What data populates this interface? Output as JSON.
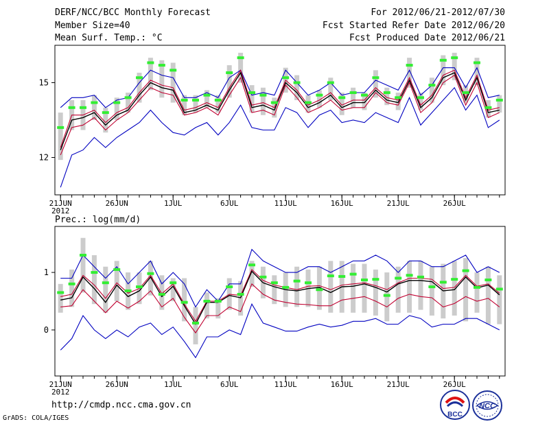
{
  "header": {
    "title": "DERF/NCC/BCC Monthly Forecast",
    "member": "Member Size=40",
    "variable": "Mean Surf. Temp.: °C",
    "period": "For 2012/06/21-2012/07/30",
    "refer": "Fcst Started Refer Date 2012/06/20",
    "produced": "Fcst Produced Date 2012/06/21"
  },
  "footer": {
    "url": "http://cmdp.ncc.cma.gov.cn",
    "credit": "GrADS: COLA/IGES",
    "logo1_text": "BCC",
    "logo2_text": "NCC"
  },
  "colors": {
    "range_line": "#0000c0",
    "spread_line": "#c00030",
    "mean_line": "#000000",
    "bar": "#cccccc",
    "marker": "#33ee33"
  },
  "chart_data": [
    {
      "type": "line",
      "title": "Mean Surf. Temp.: °C",
      "x_tick_labels": [
        "21JUN",
        "26JUN",
        "1JUL",
        "6JUL",
        "11JUL",
        "16JUL",
        "21JUL",
        "26JUL"
      ],
      "x_tick_days": [
        1,
        6,
        11,
        16,
        21,
        26,
        31,
        36
      ],
      "x_year_label": "2012",
      "y_ticks": [
        12,
        15
      ],
      "ylim": [
        10.5,
        16.5
      ],
      "days": 40,
      "series": [
        {
          "name": "max",
          "values": [
            14.0,
            14.4,
            14.4,
            14.5,
            14.0,
            14.3,
            14.4,
            15.0,
            15.5,
            15.3,
            15.2,
            14.4,
            14.4,
            14.6,
            14.4,
            15.2,
            15.5,
            14.5,
            14.6,
            14.5,
            15.5,
            15.0,
            14.5,
            14.7,
            15.0,
            14.5,
            14.6,
            14.6,
            15.1,
            14.9,
            14.7,
            15.5,
            14.5,
            14.9,
            15.6,
            15.6,
            14.8,
            15.6,
            14.4,
            14.5
          ]
        },
        {
          "name": "spread_upper",
          "values": [
            12.4,
            13.7,
            13.7,
            13.9,
            13.4,
            13.8,
            14.0,
            14.6,
            15.1,
            14.9,
            14.8,
            13.9,
            14.0,
            14.2,
            14.0,
            14.8,
            15.5,
            14.1,
            14.2,
            14.0,
            15.1,
            14.7,
            14.1,
            14.3,
            14.6,
            14.1,
            14.3,
            14.3,
            14.8,
            14.4,
            14.3,
            15.2,
            14.1,
            14.5,
            15.3,
            15.5,
            14.4,
            15.3,
            13.9,
            14.0
          ]
        },
        {
          "name": "mean",
          "values": [
            12.3,
            13.5,
            13.6,
            13.8,
            13.3,
            13.7,
            13.9,
            14.5,
            15.0,
            14.8,
            14.7,
            13.8,
            13.9,
            14.1,
            13.9,
            14.7,
            15.4,
            14.0,
            14.1,
            13.9,
            15.0,
            14.6,
            14.0,
            14.2,
            14.5,
            14.0,
            14.2,
            14.2,
            14.7,
            14.3,
            14.2,
            15.1,
            14.0,
            14.4,
            15.2,
            15.4,
            14.3,
            15.2,
            13.8,
            13.9
          ]
        },
        {
          "name": "spread_lower",
          "values": [
            12.1,
            13.2,
            13.3,
            13.6,
            13.1,
            13.5,
            13.8,
            14.3,
            14.8,
            14.6,
            14.5,
            13.7,
            13.8,
            14.0,
            13.7,
            14.5,
            15.2,
            13.8,
            13.9,
            13.7,
            14.9,
            14.4,
            13.8,
            14.0,
            14.3,
            13.9,
            14.0,
            14.0,
            14.6,
            14.2,
            14.1,
            15.0,
            13.8,
            14.2,
            15.0,
            15.3,
            14.1,
            15.0,
            13.6,
            13.8
          ]
        },
        {
          "name": "min",
          "values": [
            10.8,
            12.1,
            12.3,
            12.8,
            12.4,
            12.8,
            13.1,
            13.4,
            13.9,
            13.4,
            13.0,
            12.9,
            13.2,
            13.4,
            12.9,
            13.4,
            14.1,
            13.2,
            13.1,
            13.1,
            14.0,
            13.8,
            13.2,
            13.7,
            13.9,
            13.4,
            13.5,
            13.4,
            13.8,
            13.6,
            13.4,
            14.4,
            13.3,
            13.8,
            14.3,
            14.8,
            13.9,
            14.5,
            13.2,
            13.5
          ]
        },
        {
          "name": "marker",
          "values": [
            13.2,
            14.0,
            14.0,
            14.2,
            13.8,
            14.2,
            14.4,
            15.2,
            15.8,
            15.7,
            15.5,
            14.3,
            14.3,
            14.5,
            14.3,
            15.4,
            16.0,
            14.6,
            14.5,
            14.2,
            15.2,
            15.0,
            14.2,
            14.5,
            15.0,
            14.4,
            14.6,
            14.5,
            15.2,
            14.6,
            14.4,
            15.7,
            14.4,
            14.9,
            15.9,
            16.0,
            14.6,
            15.8,
            14.0,
            14.3
          ]
        },
        {
          "name": "bar_top",
          "values": [
            13.8,
            14.3,
            14.3,
            14.5,
            14.0,
            14.4,
            14.6,
            15.4,
            16.0,
            15.9,
            15.8,
            14.5,
            14.5,
            14.7,
            14.5,
            15.7,
            16.2,
            14.9,
            14.8,
            14.4,
            15.6,
            15.3,
            14.5,
            14.7,
            15.2,
            14.6,
            14.8,
            14.6,
            15.5,
            14.8,
            14.6,
            16.0,
            14.6,
            15.2,
            16.1,
            16.2,
            14.9,
            16.0,
            14.3,
            14.5
          ]
        },
        {
          "name": "bar_bottom",
          "values": [
            11.9,
            13.1,
            13.1,
            13.5,
            13.0,
            13.5,
            13.8,
            14.2,
            14.7,
            14.4,
            14.2,
            13.7,
            13.8,
            14.0,
            13.8,
            14.4,
            15.0,
            13.8,
            13.7,
            13.6,
            14.6,
            14.3,
            13.8,
            14.0,
            14.3,
            13.7,
            14.0,
            13.9,
            14.4,
            14.1,
            13.9,
            14.8,
            13.9,
            14.2,
            14.9,
            15.1,
            14.2,
            14.9,
            13.6,
            13.8
          ]
        }
      ]
    },
    {
      "type": "line",
      "title": "Prec.: log(mm/d)",
      "x_tick_labels": [
        "21JUN",
        "26JUN",
        "1JUL",
        "6JUL",
        "11JUL",
        "16JUL",
        "21JUL",
        "26JUL"
      ],
      "x_tick_days": [
        1,
        6,
        11,
        16,
        21,
        26,
        31,
        36
      ],
      "x_year_label": "2012",
      "y_ticks": [
        0,
        1
      ],
      "ylim": [
        -0.8,
        1.8
      ],
      "days": 40,
      "series": [
        {
          "name": "max",
          "values": [
            0.9,
            0.9,
            1.3,
            1.1,
            0.9,
            1.1,
            0.8,
            1.0,
            1.2,
            0.8,
            1.0,
            0.8,
            0.4,
            0.7,
            0.5,
            0.8,
            0.8,
            1.4,
            1.2,
            1.1,
            1.0,
            1.0,
            1.1,
            1.1,
            1.0,
            1.1,
            1.2,
            1.2,
            1.3,
            1.2,
            1.0,
            1.2,
            1.2,
            1.1,
            1.1,
            1.2,
            1.3,
            1.0,
            1.1,
            1.0
          ]
        },
        {
          "name": "spread_upper",
          "values": [
            0.58,
            0.62,
            0.95,
            0.78,
            0.55,
            0.82,
            0.64,
            0.72,
            0.95,
            0.63,
            0.8,
            0.45,
            0.15,
            0.5,
            0.5,
            0.62,
            0.6,
            1.05,
            0.86,
            0.78,
            0.74,
            0.7,
            0.76,
            0.77,
            0.7,
            0.78,
            0.8,
            0.82,
            0.77,
            0.7,
            0.82,
            0.9,
            0.9,
            0.88,
            0.72,
            0.74,
            0.95,
            0.76,
            0.8,
            0.64
          ]
        },
        {
          "name": "mean",
          "values": [
            0.52,
            0.56,
            0.92,
            0.72,
            0.48,
            0.78,
            0.58,
            0.68,
            0.92,
            0.58,
            0.76,
            0.42,
            0.1,
            0.48,
            0.48,
            0.6,
            0.56,
            1.02,
            0.82,
            0.75,
            0.7,
            0.68,
            0.72,
            0.74,
            0.65,
            0.75,
            0.76,
            0.8,
            0.74,
            0.66,
            0.8,
            0.86,
            0.86,
            0.84,
            0.68,
            0.7,
            0.92,
            0.73,
            0.78,
            0.61
          ]
        },
        {
          "name": "spread_lower",
          "values": [
            0.4,
            0.42,
            0.7,
            0.5,
            0.3,
            0.5,
            0.38,
            0.5,
            0.68,
            0.4,
            0.55,
            0.22,
            -0.05,
            0.25,
            0.25,
            0.4,
            0.32,
            0.8,
            0.62,
            0.52,
            0.48,
            0.45,
            0.44,
            0.42,
            0.42,
            0.52,
            0.55,
            0.58,
            0.5,
            0.4,
            0.55,
            0.62,
            0.58,
            0.56,
            0.4,
            0.46,
            0.58,
            0.5,
            0.55,
            0.4
          ]
        },
        {
          "name": "min",
          "values": [
            -0.35,
            -0.15,
            0.25,
            0.0,
            -0.15,
            0.0,
            -0.12,
            0.05,
            0.12,
            -0.08,
            0.05,
            -0.2,
            -0.48,
            -0.12,
            -0.12,
            0.0,
            -0.08,
            0.45,
            0.12,
            0.05,
            -0.02,
            -0.02,
            0.05,
            0.1,
            0.05,
            0.08,
            0.15,
            0.15,
            0.2,
            0.1,
            0.1,
            0.25,
            0.2,
            0.05,
            0.1,
            0.1,
            0.2,
            0.2,
            0.1,
            0.0
          ]
        },
        {
          "name": "marker",
          "values": [
            0.65,
            0.8,
            1.3,
            1.0,
            0.82,
            1.05,
            0.68,
            0.75,
            0.98,
            0.62,
            0.82,
            0.48,
            0.12,
            0.5,
            0.5,
            0.75,
            0.62,
            1.13,
            0.92,
            0.82,
            0.74,
            0.85,
            0.82,
            0.7,
            0.94,
            0.93,
            0.97,
            0.87,
            0.88,
            0.6,
            0.9,
            0.95,
            0.92,
            0.75,
            0.83,
            0.88,
            1.03,
            0.74,
            0.87,
            0.71
          ]
        },
        {
          "name": "bar_top",
          "values": [
            0.8,
            1.05,
            1.6,
            1.3,
            1.1,
            1.2,
            1.0,
            1.0,
            1.2,
            0.95,
            0.9,
            0.9,
            0.4,
            0.65,
            0.55,
            0.9,
            0.85,
            1.2,
            1.1,
            0.95,
            1.0,
            1.1,
            1.05,
            1.1,
            1.2,
            1.2,
            1.15,
            1.15,
            1.05,
            1.0,
            1.1,
            1.2,
            1.2,
            1.1,
            1.15,
            1.2,
            1.25,
            1.0,
            1.1,
            0.95
          ]
        },
        {
          "name": "bar_bottom",
          "values": [
            0.3,
            0.4,
            0.65,
            0.45,
            0.3,
            0.5,
            0.35,
            0.45,
            0.6,
            0.35,
            0.5,
            0.15,
            -0.25,
            0.2,
            0.2,
            0.35,
            0.25,
            0.75,
            0.55,
            0.45,
            0.4,
            0.4,
            0.4,
            0.35,
            0.3,
            0.3,
            0.3,
            0.3,
            0.25,
            0.15,
            0.3,
            0.3,
            0.35,
            0.25,
            0.2,
            0.25,
            0.15,
            0.3,
            0.1,
            0.1
          ]
        }
      ]
    }
  ]
}
